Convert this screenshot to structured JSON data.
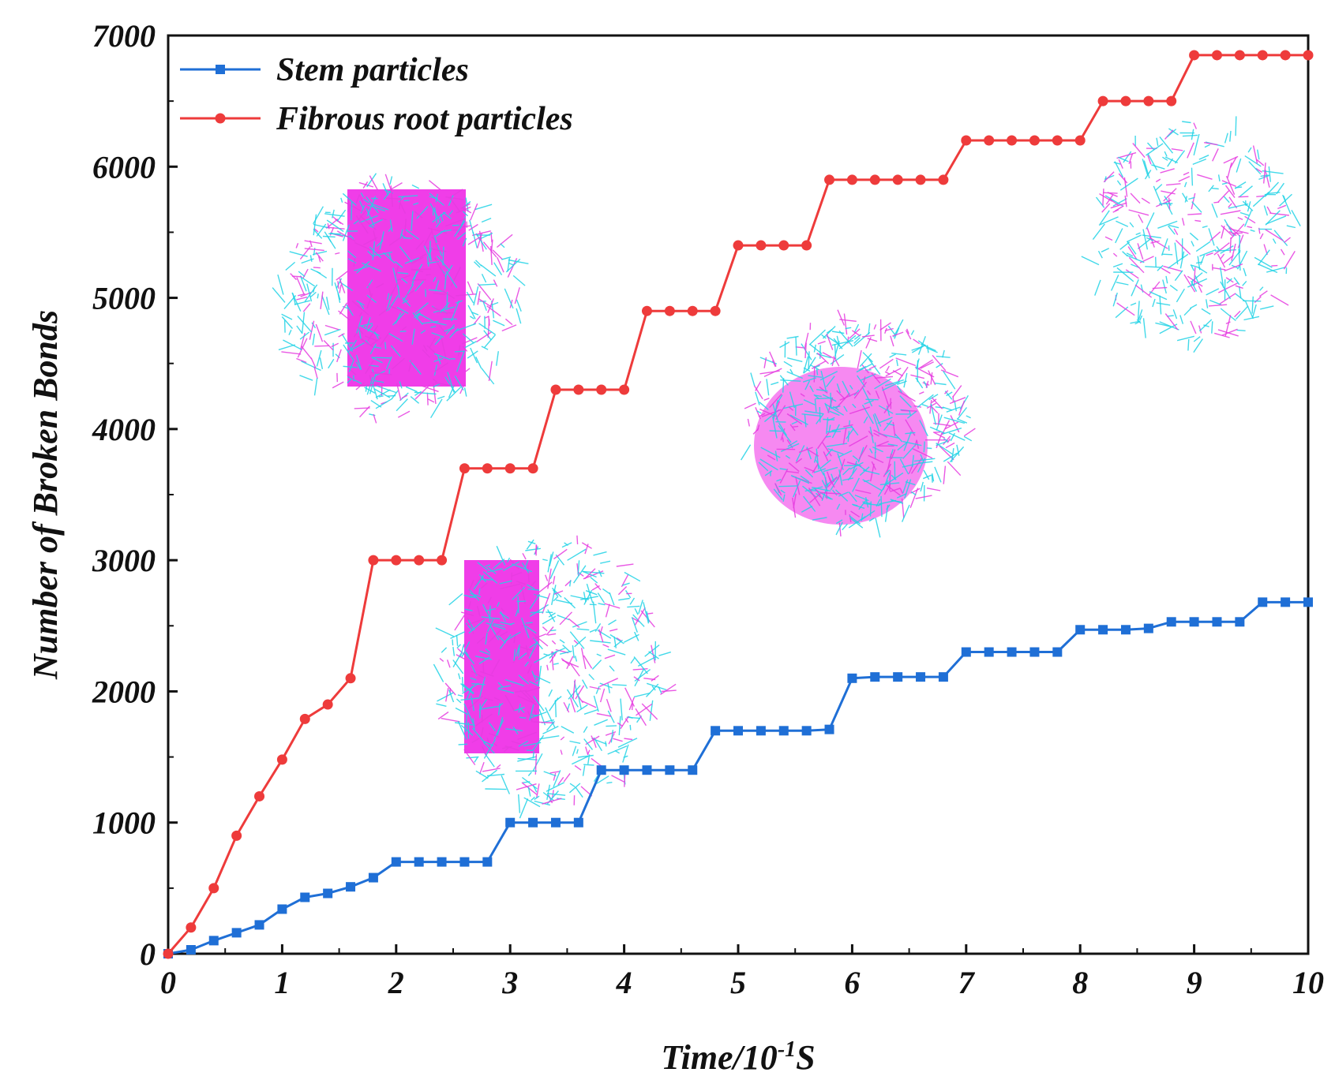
{
  "chart_data": {
    "type": "line",
    "title": "",
    "xlabel": "Time/10-1S",
    "xlabel_parts": {
      "base": "Time/10",
      "sup": "-1",
      "tail": "S"
    },
    "ylabel": "Number of Broken Bonds",
    "xlim": [
      0,
      10
    ],
    "ylim": [
      0,
      7000
    ],
    "xticks": [
      "0",
      "1",
      "2",
      "3",
      "4",
      "5",
      "6",
      "7",
      "8",
      "9",
      "10"
    ],
    "yticks": [
      "0",
      "1000",
      "2000",
      "3000",
      "4000",
      "5000",
      "6000",
      "7000"
    ],
    "grid": false,
    "legend_position": "top-left",
    "x": [
      0,
      0.2,
      0.4,
      0.6,
      0.8,
      1.0,
      1.2,
      1.4,
      1.6,
      1.8,
      2.0,
      2.2,
      2.4,
      2.6,
      2.8,
      3.0,
      3.2,
      3.4,
      3.6,
      3.8,
      4.0,
      4.2,
      4.4,
      4.6,
      4.8,
      5.0,
      5.2,
      5.4,
      5.6,
      5.8,
      6.0,
      6.2,
      6.4,
      6.6,
      6.8,
      7.0,
      7.2,
      7.4,
      7.6,
      7.8,
      8.0,
      8.2,
      8.4,
      8.6,
      8.8,
      9.0,
      9.2,
      9.4,
      9.6,
      9.8,
      10.0
    ],
    "series": [
      {
        "name": "Stem particles",
        "color": "#1f6fd6",
        "marker": "square",
        "values": [
          0,
          30,
          100,
          160,
          220,
          340,
          430,
          460,
          510,
          580,
          700,
          700,
          700,
          700,
          700,
          1000,
          1000,
          1000,
          1000,
          1400,
          1400,
          1400,
          1400,
          1400,
          1700,
          1700,
          1700,
          1700,
          1700,
          1710,
          2100,
          2110,
          2110,
          2110,
          2110,
          2300,
          2300,
          2300,
          2300,
          2300,
          2470,
          2470,
          2470,
          2480,
          2530,
          2530,
          2530,
          2530,
          2680,
          2680,
          2680
        ]
      },
      {
        "name": "Fibrous root particles",
        "color": "#ee3b3b",
        "marker": "circle",
        "values": [
          0,
          200,
          500,
          900,
          1200,
          1480,
          1790,
          1900,
          2100,
          3000,
          3000,
          3000,
          3000,
          3700,
          3700,
          3700,
          3700,
          4300,
          4300,
          4300,
          4300,
          4900,
          4900,
          4900,
          4900,
          5400,
          5400,
          5400,
          5400,
          5900,
          5900,
          5900,
          5900,
          5900,
          5900,
          6200,
          6200,
          6200,
          6200,
          6200,
          6200,
          6500,
          6500,
          6500,
          6500,
          6850,
          6850,
          6850,
          6850,
          6850,
          6850
        ]
      }
    ]
  }
}
